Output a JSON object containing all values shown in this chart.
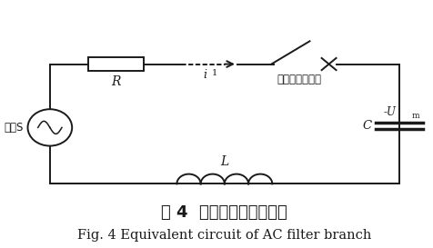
{
  "title_cn": "图 4  滤波器支路等值电路",
  "title_en": "Fig. 4 Equivalent circuit of AC filter branch",
  "bg_color": "#ffffff",
  "line_color": "#1a1a1a",
  "label_R": "R",
  "label_i1": "i",
  "label_breaker": "滤波支路断路器",
  "label_Um": "-U",
  "label_Um_sub": "m",
  "label_C": "C",
  "label_L": "L",
  "label_source": "电源S",
  "title_cn_fontsize": 13,
  "title_en_fontsize": 10.5,
  "figsize": [
    4.77,
    2.73
  ],
  "dpi": 100
}
